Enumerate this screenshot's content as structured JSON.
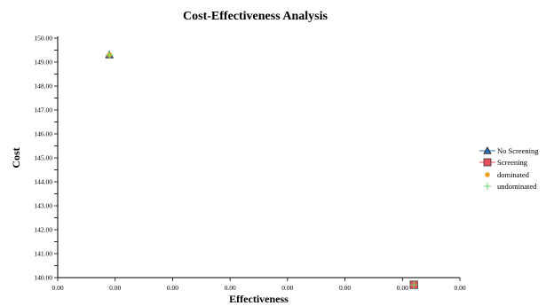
{
  "chart_data": {
    "type": "scatter",
    "title": "Cost-Effectiveness Analysis",
    "xlabel": "Effectiveness",
    "ylabel": "Cost",
    "x_tick_labels": [
      "0.00",
      "0.00",
      "0.00",
      "0.00",
      "0.00",
      "0.00",
      "0.00",
      "0.00"
    ],
    "y_tick_labels": [
      "140.00",
      "141.00",
      "142.00",
      "143.00",
      "144.00",
      "145.00",
      "146.00",
      "147.00",
      "148.00",
      "149.00",
      "150.00"
    ],
    "ylim": [
      140,
      150
    ],
    "y_minor_step": 0.5,
    "series": [
      {
        "name": "No Screening",
        "marker": "triangle",
        "color": "#2e75b6",
        "points": [
          {
            "x": 0.0009,
            "y": 149.3
          }
        ]
      },
      {
        "name": "Screening",
        "marker": "square",
        "color": "#e8505b",
        "points": [
          {
            "x": 0.0062,
            "y": 139.7
          }
        ]
      },
      {
        "name": "dominated",
        "marker": "circle",
        "color": "#f0a020",
        "points": [
          {
            "x": 0.0009,
            "y": 149.3
          }
        ]
      },
      {
        "name": "undominated",
        "marker": "cross",
        "color": "#66dd66",
        "points": [
          {
            "x": 0.0009,
            "y": 149.3
          },
          {
            "x": 0.0062,
            "y": 139.7
          }
        ]
      }
    ],
    "xlim": [
      0,
      0.007
    ],
    "legend_position": "right"
  }
}
